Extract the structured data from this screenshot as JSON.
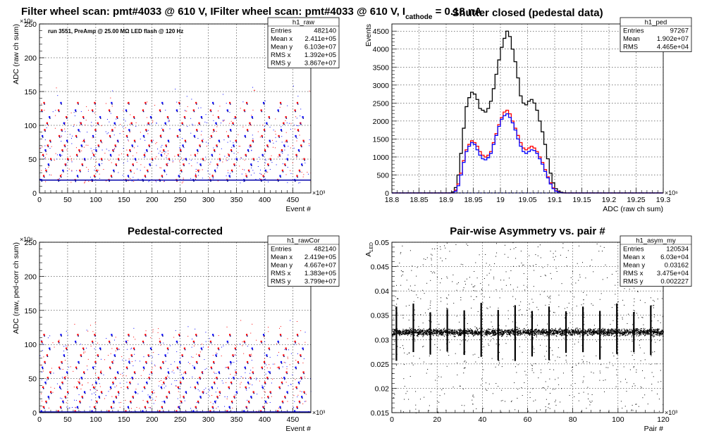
{
  "chart_data": [
    {
      "id": "p1",
      "type": "scatter",
      "title": "Filter wheel scan: pmt#4033 @   610 V, I",
      "title_sub": "cathode",
      "title_tail": " = 0.18 nA",
      "annotation": "run 3551, PreAmp @ 25.00 MΩ LED flash @  120 Hz",
      "xlabel": "Event #",
      "ylabel": "ADC (raw ch sum)",
      "x_exponent": "×10³",
      "y_exponent": "×10⁶",
      "xlim": [
        0,
        482
      ],
      "ylim": [
        0,
        250
      ],
      "xticks": [
        0,
        50,
        100,
        150,
        200,
        250,
        300,
        350,
        400,
        450
      ],
      "yticks": [
        0,
        50,
        100,
        150,
        200,
        250
      ],
      "grid": true,
      "period": 30,
      "dash_levels": [
        19,
        25,
        33,
        42,
        50,
        56,
        63,
        70,
        77,
        84,
        93,
        103,
        112,
        122,
        133
      ],
      "band_level": 19,
      "stats": {
        "name": "h1_raw",
        "rows": [
          [
            "Entries",
            "482140"
          ],
          [
            "Mean x",
            "2.411e+05"
          ],
          [
            "Mean y",
            "6.103e+07"
          ],
          [
            "RMS x",
            "1.392e+05"
          ],
          [
            "RMS y",
            "3.867e+07"
          ]
        ]
      }
    },
    {
      "id": "p2",
      "type": "line",
      "title": "Shutter closed (pedestal data)",
      "xlabel": "ADC (raw ch sum)",
      "ylabel": "Events",
      "x_exponent": "×10⁶",
      "xlim": [
        18.8,
        19.3
      ],
      "ylim": [
        0,
        4700
      ],
      "xticks": [
        18.8,
        18.85,
        18.9,
        18.95,
        19.0,
        19.05,
        19.1,
        19.15,
        19.2,
        19.25,
        19.3
      ],
      "xtick_labels": [
        "18.8",
        "18.85",
        "18.9",
        "18.95",
        "19",
        "19.05",
        "19.1",
        "19.15",
        "19.2",
        "19.25",
        "19.3"
      ],
      "yticks": [
        0,
        500,
        1000,
        1500,
        2000,
        2500,
        3000,
        3500,
        4000,
        4500
      ],
      "grid": true,
      "series": [
        {
          "color": "#000000",
          "x": [
            18.8,
            18.905,
            18.91,
            18.915,
            18.92,
            18.925,
            18.93,
            18.935,
            18.94,
            18.945,
            18.95,
            18.955,
            18.96,
            18.965,
            18.97,
            18.975,
            18.98,
            18.985,
            18.99,
            18.995,
            19.0,
            19.005,
            19.01,
            19.015,
            19.02,
            19.025,
            19.03,
            19.035,
            19.04,
            19.045,
            19.05,
            19.055,
            19.06,
            19.065,
            19.07,
            19.075,
            19.08,
            19.085,
            19.09,
            19.095,
            19.1,
            19.105,
            19.11,
            19.115,
            19.12,
            19.3
          ],
          "y": [
            0,
            0,
            30,
            150,
            500,
            1100,
            1800,
            2400,
            2650,
            2800,
            2750,
            2600,
            2350,
            2300,
            2250,
            2350,
            2550,
            2900,
            3300,
            3700,
            4050,
            4300,
            4500,
            4350,
            4000,
            3650,
            3200,
            2700,
            2500,
            2450,
            2550,
            2600,
            2500,
            2300,
            2000,
            1700,
            1350,
            950,
            550,
            280,
            120,
            50,
            20,
            5,
            0,
            0
          ]
        },
        {
          "color": "#ff0000",
          "x": [
            18.8,
            18.91,
            18.915,
            18.92,
            18.925,
            18.93,
            18.935,
            18.94,
            18.945,
            18.95,
            18.955,
            18.96,
            18.965,
            18.97,
            18.975,
            18.98,
            18.985,
            18.99,
            18.995,
            19.0,
            19.005,
            19.01,
            19.015,
            19.02,
            19.025,
            19.03,
            19.035,
            19.04,
            19.045,
            19.05,
            19.055,
            19.06,
            19.065,
            19.07,
            19.075,
            19.08,
            19.085,
            19.09,
            19.095,
            19.1,
            19.105,
            19.11,
            19.115,
            19.3
          ],
          "y": [
            0,
            0,
            80,
            250,
            550,
            900,
            1200,
            1350,
            1450,
            1400,
            1300,
            1150,
            1050,
            1000,
            1050,
            1150,
            1400,
            1650,
            1900,
            2100,
            2250,
            2300,
            2200,
            2000,
            1800,
            1600,
            1400,
            1250,
            1200,
            1250,
            1300,
            1250,
            1150,
            1000,
            850,
            650,
            450,
            280,
            140,
            60,
            20,
            5,
            0,
            0
          ]
        },
        {
          "color": "#0000ff",
          "x": [
            18.8,
            18.91,
            18.915,
            18.92,
            18.925,
            18.93,
            18.935,
            18.94,
            18.945,
            18.95,
            18.955,
            18.96,
            18.965,
            18.97,
            18.975,
            18.98,
            18.985,
            18.99,
            18.995,
            19.0,
            19.005,
            19.01,
            19.015,
            19.02,
            19.025,
            19.03,
            19.035,
            19.04,
            19.045,
            19.05,
            19.055,
            19.06,
            19.065,
            19.07,
            19.075,
            19.08,
            19.085,
            19.09,
            19.095,
            19.1,
            19.105,
            19.11,
            19.115,
            19.3
          ],
          "y": [
            0,
            0,
            50,
            200,
            500,
            850,
            1150,
            1300,
            1400,
            1350,
            1200,
            1050,
            950,
            920,
            980,
            1100,
            1350,
            1600,
            1850,
            2050,
            2150,
            2200,
            2100,
            1950,
            1750,
            1500,
            1300,
            1150,
            1100,
            1150,
            1200,
            1180,
            1100,
            950,
            800,
            600,
            420,
            250,
            120,
            50,
            15,
            5,
            0,
            0
          ]
        }
      ],
      "stats": {
        "name": "h1_ped",
        "rows": [
          [
            "Entries",
            "97267"
          ],
          [
            "Mean",
            "1.902e+07"
          ],
          [
            "RMS",
            "4.465e+04"
          ]
        ]
      }
    },
    {
      "id": "p3",
      "type": "scatter",
      "title": "Pedestal-corrected",
      "xlabel": "Event #",
      "ylabel": "ADC (raw, ped-corr ch sum)",
      "x_exponent": "×10³",
      "y_exponent": "×10⁶",
      "xlim": [
        0,
        482
      ],
      "ylim": [
        0,
        250
      ],
      "xticks": [
        0,
        50,
        100,
        150,
        200,
        250,
        300,
        350,
        400,
        450
      ],
      "yticks": [
        0,
        50,
        100,
        150,
        200,
        250
      ],
      "grid": true,
      "period": 30,
      "dash_levels": [
        2,
        8,
        16,
        23,
        30,
        37,
        44,
        51,
        59,
        66,
        74,
        84,
        94,
        104,
        114
      ],
      "band_level": 1,
      "stats": {
        "name": "h1_rawCor",
        "rows": [
          [
            "Entries",
            "482140"
          ],
          [
            "Mean x",
            "2.419e+05"
          ],
          [
            "Mean y",
            "4.667e+07"
          ],
          [
            "RMS x",
            "1.383e+05"
          ],
          [
            "RMS y",
            "3.799e+07"
          ]
        ]
      }
    },
    {
      "id": "p4",
      "type": "scatter",
      "title": "Pair-wise Asymmetry vs. pair #",
      "xlabel": "Pair #",
      "ylabel": "A",
      "ylabel_sub": "LED",
      "x_exponent": "×10³",
      "xlim": [
        0,
        120
      ],
      "ylim": [
        0.015,
        0.05
      ],
      "xticks": [
        0,
        20,
        40,
        60,
        80,
        100,
        120
      ],
      "yticks": [
        0.015,
        0.02,
        0.025,
        0.03,
        0.035,
        0.04,
        0.045,
        0.05
      ],
      "ytick_labels": [
        "0.015",
        "0.02",
        "0.025",
        "0.03",
        "0.035",
        "0.04",
        "0.045",
        "0.05"
      ],
      "grid": true,
      "band_center": 0.0316,
      "band_halfwidth": 0.0012,
      "spike_period": 7.5,
      "stats": {
        "name": "h1_asym_my",
        "rows": [
          [
            "Entries",
            "120534"
          ],
          [
            "Mean x",
            "6.03e+04"
          ],
          [
            "Mean y",
            "0.03162"
          ],
          [
            "RMS x",
            "3.475e+04"
          ],
          [
            "RMS y",
            "0.002227"
          ]
        ]
      }
    }
  ]
}
